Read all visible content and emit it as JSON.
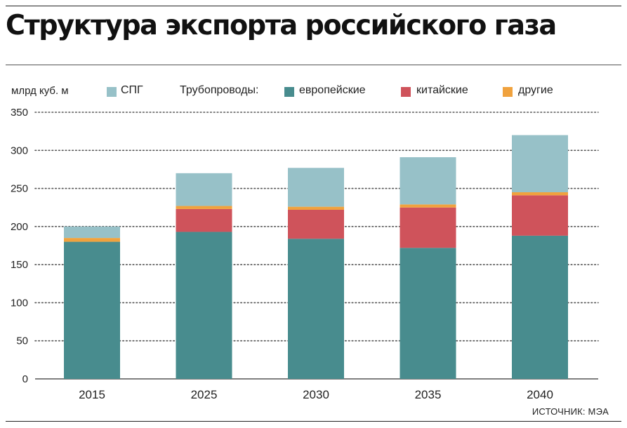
{
  "header": {
    "title": "Структура экспорта российского газа"
  },
  "unit_label": "млрд куб. м",
  "legend": {
    "lng_label": "СПГ",
    "pipelines_label": "Трубопроводы:",
    "european_label": "европейские",
    "chinese_label": "китайские",
    "other_label": "другие"
  },
  "source": "ИСТОЧНИК: МЭА",
  "colors": {
    "lng": "#97c1c8",
    "european": "#488c8e",
    "chinese": "#cf535b",
    "other": "#f0a23e",
    "grid": "#555555",
    "axis": "#333333"
  },
  "chart_data": {
    "type": "bar",
    "stacked": true,
    "title": "Структура экспорта российского газа",
    "ylabel": "млрд куб. м",
    "xlabel": "",
    "ylim": [
      0,
      350
    ],
    "yticks": [
      0,
      50,
      100,
      150,
      200,
      250,
      300,
      350
    ],
    "categories": [
      "2015",
      "2025",
      "2030",
      "2035",
      "2040"
    ],
    "series": [
      {
        "name": "европейские",
        "key": "european",
        "values": [
          180,
          193,
          184,
          172,
          188
        ]
      },
      {
        "name": "другие",
        "key": "other",
        "values": [
          0,
          0,
          0,
          0,
          0
        ]
      },
      {
        "name": "китайские",
        "key": "chinese",
        "values": [
          0,
          30,
          38,
          53,
          53
        ]
      },
      {
        "name": "другие",
        "key": "other",
        "values": [
          5,
          4,
          4,
          4,
          4
        ]
      },
      {
        "name": "СПГ",
        "key": "lng",
        "values": [
          15,
          43,
          51,
          62,
          75
        ]
      }
    ],
    "grid": true,
    "legend_position": "top"
  }
}
